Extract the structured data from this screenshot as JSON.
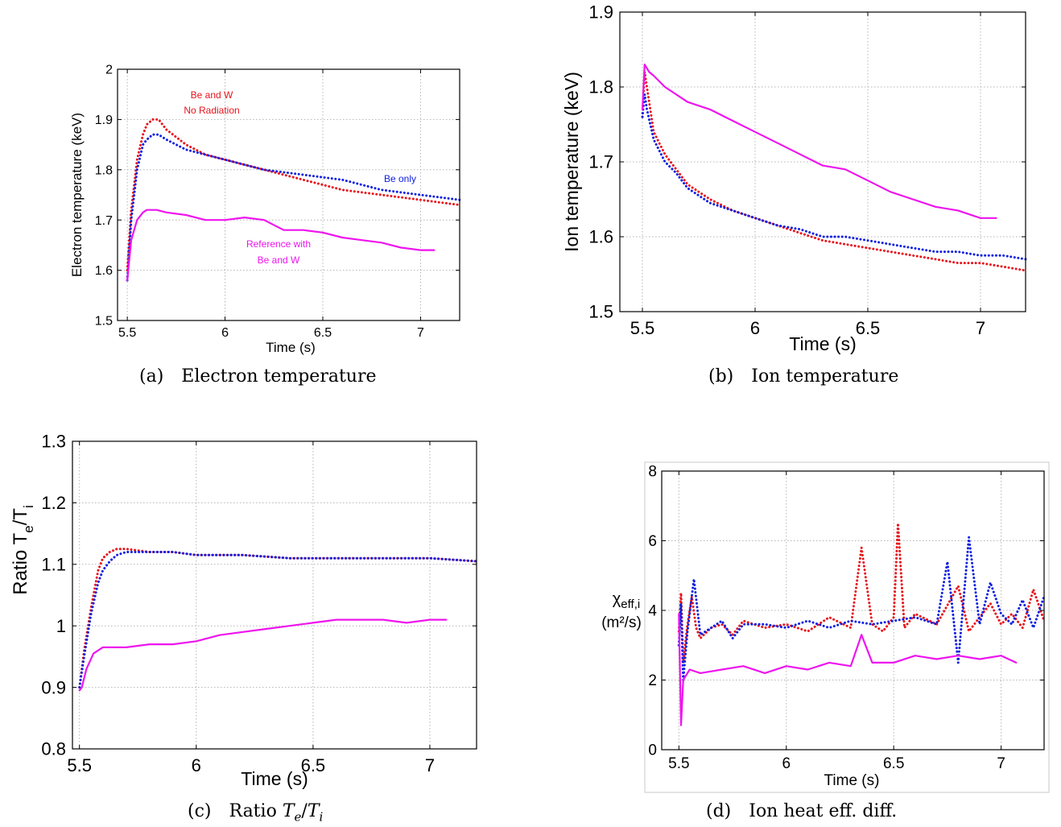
{
  "colors": {
    "be_and_w_no_radiation": "#e8131b",
    "be_only": "#1020e0",
    "reference": "#ee14ee",
    "grid": "#b4b4b4"
  },
  "annotations": {
    "be_w_no_rad_line1": "Be and W",
    "be_w_no_rad_line2": "No Radiation",
    "be_only": "Be only",
    "reference_line1": "Reference with",
    "reference_line2": "Be and W"
  },
  "captions": {
    "a": {
      "tag": "(a)",
      "text": "Electron temperature"
    },
    "b": {
      "tag": "(b)",
      "text": "Ion temperature"
    },
    "c": {
      "tag": "(c)",
      "text": "Ratio",
      "math_base1": "T",
      "math_sub1": "e",
      "math_slash": "/",
      "math_base2": "T",
      "math_sub2": "i"
    },
    "d": {
      "tag": "(d)",
      "text": "Ion heat eff. diff."
    }
  },
  "chart_data": [
    {
      "id": "a",
      "type": "line",
      "xlabel": "Time (s)",
      "ylabel": "Electron temperature (keV)",
      "xlim": [
        5.45,
        7.2
      ],
      "ylim": [
        1.5,
        2.0
      ],
      "xticks": [
        "5.5",
        "6",
        "6.5",
        "7"
      ],
      "yticks": [
        "1.5",
        "1.6",
        "1.7",
        "1.8",
        "1.9",
        "2"
      ],
      "grid": true,
      "series": [
        {
          "key": "be_and_w_no_radiation",
          "style": "dotted",
          "x": [
            5.5,
            5.52,
            5.55,
            5.58,
            5.6,
            5.63,
            5.66,
            5.7,
            5.8,
            5.9,
            6.0,
            6.1,
            6.2,
            6.3,
            6.4,
            6.5,
            6.6,
            6.7,
            6.8,
            6.9,
            7.0,
            7.1,
            7.2
          ],
          "y": [
            1.6,
            1.72,
            1.82,
            1.87,
            1.89,
            1.9,
            1.9,
            1.88,
            1.85,
            1.83,
            1.82,
            1.81,
            1.8,
            1.79,
            1.78,
            1.77,
            1.76,
            1.755,
            1.75,
            1.745,
            1.74,
            1.735,
            1.73
          ]
        },
        {
          "key": "be_only",
          "style": "dotted",
          "x": [
            5.5,
            5.52,
            5.55,
            5.58,
            5.6,
            5.63,
            5.66,
            5.7,
            5.8,
            5.9,
            6.0,
            6.1,
            6.2,
            6.3,
            6.4,
            6.5,
            6.6,
            6.7,
            6.8,
            6.9,
            7.0,
            7.1,
            7.2
          ],
          "y": [
            1.58,
            1.7,
            1.8,
            1.85,
            1.86,
            1.87,
            1.87,
            1.86,
            1.84,
            1.83,
            1.82,
            1.81,
            1.8,
            1.795,
            1.79,
            1.785,
            1.78,
            1.77,
            1.76,
            1.755,
            1.75,
            1.745,
            1.74
          ]
        },
        {
          "key": "reference",
          "style": "solid",
          "x": [
            5.5,
            5.52,
            5.55,
            5.58,
            5.6,
            5.65,
            5.7,
            5.8,
            5.9,
            6.0,
            6.1,
            6.2,
            6.3,
            6.4,
            6.5,
            6.6,
            6.7,
            6.8,
            6.9,
            7.0,
            7.07
          ],
          "y": [
            1.58,
            1.66,
            1.7,
            1.715,
            1.72,
            1.72,
            1.715,
            1.71,
            1.7,
            1.7,
            1.705,
            1.7,
            1.68,
            1.68,
            1.675,
            1.665,
            1.66,
            1.655,
            1.645,
            1.64,
            1.64
          ]
        }
      ]
    },
    {
      "id": "b",
      "type": "line",
      "xlabel": "Time (s)",
      "ylabel": "Ion temperature (keV)",
      "xlim": [
        5.4,
        7.2
      ],
      "ylim": [
        1.5,
        1.9
      ],
      "xticks": [
        "5.5",
        "6",
        "6.5",
        "7"
      ],
      "yticks": [
        "1.5",
        "1.6",
        "1.7",
        "1.8",
        "1.9"
      ],
      "grid": true,
      "series": [
        {
          "key": "be_and_w_no_radiation",
          "style": "dotted",
          "x": [
            5.5,
            5.51,
            5.52,
            5.55,
            5.6,
            5.65,
            5.7,
            5.8,
            5.9,
            6.0,
            6.1,
            6.2,
            6.3,
            6.4,
            6.5,
            6.6,
            6.7,
            6.8,
            6.9,
            7.0,
            7.1,
            7.2
          ],
          "y": [
            1.76,
            1.82,
            1.8,
            1.74,
            1.71,
            1.69,
            1.67,
            1.65,
            1.635,
            1.625,
            1.615,
            1.605,
            1.595,
            1.59,
            1.585,
            1.58,
            1.575,
            1.57,
            1.565,
            1.565,
            1.56,
            1.555
          ]
        },
        {
          "key": "be_only",
          "style": "dotted",
          "x": [
            5.5,
            5.51,
            5.52,
            5.55,
            5.6,
            5.65,
            5.7,
            5.8,
            5.9,
            6.0,
            6.1,
            6.2,
            6.3,
            6.4,
            6.5,
            6.6,
            6.7,
            6.8,
            6.9,
            7.0,
            7.1,
            7.2
          ],
          "y": [
            1.76,
            1.79,
            1.77,
            1.73,
            1.7,
            1.685,
            1.665,
            1.645,
            1.635,
            1.625,
            1.615,
            1.61,
            1.6,
            1.6,
            1.595,
            1.59,
            1.585,
            1.58,
            1.58,
            1.575,
            1.575,
            1.57
          ]
        },
        {
          "key": "reference",
          "style": "solid",
          "x": [
            5.5,
            5.51,
            5.53,
            5.55,
            5.6,
            5.7,
            5.8,
            5.9,
            6.0,
            6.1,
            6.2,
            6.3,
            6.4,
            6.5,
            6.6,
            6.7,
            6.8,
            6.9,
            7.0,
            7.07
          ],
          "y": [
            1.77,
            1.83,
            1.82,
            1.815,
            1.8,
            1.78,
            1.77,
            1.755,
            1.74,
            1.725,
            1.71,
            1.695,
            1.69,
            1.675,
            1.66,
            1.65,
            1.64,
            1.635,
            1.625,
            1.625
          ]
        }
      ]
    },
    {
      "id": "c",
      "type": "line",
      "xlabel": "Time (s)",
      "ylabel_base": "Ratio T",
      "ylabel_sub1": "e",
      "ylabel_mid": "/T",
      "ylabel_sub2": "i",
      "xlim": [
        5.47,
        7.2
      ],
      "ylim": [
        0.8,
        1.3
      ],
      "xticks": [
        "5.5",
        "6",
        "6.5",
        "7"
      ],
      "yticks": [
        "0.8",
        "0.9",
        "1",
        "1.1",
        "1.2",
        "1.3"
      ],
      "grid": true,
      "series": [
        {
          "key": "be_and_w_no_radiation",
          "style": "dotted",
          "x": [
            5.5,
            5.52,
            5.55,
            5.58,
            5.6,
            5.63,
            5.66,
            5.7,
            5.8,
            5.9,
            6.0,
            6.2,
            6.4,
            6.6,
            6.8,
            7.0,
            7.2
          ],
          "y": [
            0.9,
            0.96,
            1.03,
            1.09,
            1.11,
            1.12,
            1.125,
            1.125,
            1.12,
            1.12,
            1.115,
            1.115,
            1.11,
            1.11,
            1.11,
            1.11,
            1.105
          ]
        },
        {
          "key": "be_only",
          "style": "dotted",
          "x": [
            5.5,
            5.52,
            5.55,
            5.58,
            5.6,
            5.63,
            5.66,
            5.7,
            5.8,
            5.9,
            6.0,
            6.2,
            6.4,
            6.6,
            6.8,
            7.0,
            7.2
          ],
          "y": [
            0.9,
            0.95,
            1.02,
            1.07,
            1.09,
            1.105,
            1.115,
            1.12,
            1.12,
            1.12,
            1.115,
            1.115,
            1.11,
            1.11,
            1.11,
            1.11,
            1.105
          ]
        },
        {
          "key": "reference",
          "style": "solid",
          "x": [
            5.5,
            5.51,
            5.53,
            5.56,
            5.6,
            5.7,
            5.8,
            5.9,
            6.0,
            6.1,
            6.2,
            6.3,
            6.4,
            6.5,
            6.6,
            6.7,
            6.8,
            6.9,
            7.0,
            7.07
          ],
          "y": [
            0.895,
            0.9,
            0.93,
            0.955,
            0.965,
            0.965,
            0.97,
            0.97,
            0.975,
            0.985,
            0.99,
            0.995,
            1.0,
            1.005,
            1.01,
            1.01,
            1.01,
            1.005,
            1.01,
            1.01
          ]
        }
      ]
    },
    {
      "id": "d",
      "type": "line",
      "xlabel": "Time (s)",
      "ylabel_line1": "χ",
      "ylabel_line1_sub": "eff,i",
      "ylabel_line2": "(m²/s)",
      "xlim": [
        5.42,
        7.2
      ],
      "ylim": [
        0,
        8
      ],
      "xticks": [
        "5.5",
        "6",
        "6.5",
        "7"
      ],
      "yticks": [
        "0",
        "2",
        "4",
        "6",
        "8"
      ],
      "grid": true,
      "series": [
        {
          "key": "be_and_w_no_radiation",
          "style": "dotted",
          "x": [
            5.5,
            5.51,
            5.52,
            5.54,
            5.56,
            5.58,
            5.6,
            5.65,
            5.7,
            5.75,
            5.8,
            5.9,
            6.0,
            6.1,
            6.2,
            6.3,
            6.35,
            6.4,
            6.45,
            6.5,
            6.52,
            6.55,
            6.6,
            6.7,
            6.8,
            6.85,
            6.9,
            6.95,
            7.0,
            7.05,
            7.1,
            7.15,
            7.2
          ],
          "y": [
            3.4,
            4.5,
            2.5,
            3.6,
            4.4,
            3.5,
            3.2,
            3.5,
            3.6,
            3.3,
            3.7,
            3.5,
            3.6,
            3.4,
            3.8,
            3.5,
            5.8,
            3.6,
            3.4,
            3.8,
            6.5,
            3.5,
            3.9,
            3.6,
            4.7,
            3.4,
            3.8,
            4.2,
            3.6,
            3.9,
            3.5,
            4.6,
            3.7
          ]
        },
        {
          "key": "be_only",
          "style": "dotted",
          "x": [
            5.5,
            5.51,
            5.52,
            5.54,
            5.57,
            5.6,
            5.65,
            5.7,
            5.75,
            5.8,
            5.9,
            6.0,
            6.1,
            6.2,
            6.3,
            6.4,
            6.5,
            6.6,
            6.7,
            6.75,
            6.8,
            6.85,
            6.9,
            6.95,
            7.0,
            7.05,
            7.1,
            7.15,
            7.2
          ],
          "y": [
            3.0,
            4.2,
            2.0,
            3.4,
            4.9,
            3.3,
            3.5,
            3.7,
            3.2,
            3.6,
            3.6,
            3.5,
            3.7,
            3.5,
            3.7,
            3.6,
            3.7,
            3.8,
            3.6,
            5.4,
            2.5,
            6.1,
            3.6,
            4.8,
            3.9,
            3.6,
            4.3,
            3.5,
            4.4
          ]
        },
        {
          "key": "reference",
          "style": "solid",
          "x": [
            5.5,
            5.51,
            5.52,
            5.55,
            5.6,
            5.7,
            5.8,
            5.9,
            6.0,
            6.1,
            6.2,
            6.3,
            6.35,
            6.4,
            6.5,
            6.6,
            6.7,
            6.8,
            6.9,
            7.0,
            7.07
          ],
          "y": [
            3.9,
            0.7,
            2.0,
            2.3,
            2.2,
            2.3,
            2.4,
            2.2,
            2.4,
            2.3,
            2.5,
            2.4,
            3.3,
            2.5,
            2.5,
            2.7,
            2.6,
            2.7,
            2.6,
            2.7,
            2.5
          ]
        }
      ]
    }
  ]
}
